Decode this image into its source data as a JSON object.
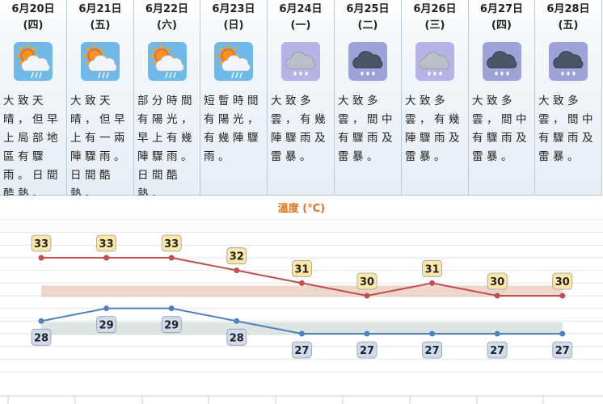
{
  "forecast": [
    {
      "date": "6月20日",
      "weekday": "(四)",
      "icon": "sun-cloud-rain-icon",
      "description": "大致天晴，但早上局部地區有驟雨。日間酷熱。"
    },
    {
      "date": "6月21日",
      "weekday": "(五)",
      "icon": "sun-cloud-rain-icon",
      "description": "大致天晴，但早上有一兩陣驟雨。日間酷熱。"
    },
    {
      "date": "6月22日",
      "weekday": "(六)",
      "icon": "sun-cloud-rain-icon",
      "description": "部分時間有陽光，早上有幾陣驟雨。日間酷熱。"
    },
    {
      "date": "6月23日",
      "weekday": "(日)",
      "icon": "sun-cloud-rain-icon",
      "description": "短暫時間有陽光，有幾陣驟雨。"
    },
    {
      "date": "6月24日",
      "weekday": "(一)",
      "icon": "cloud-rain-icon",
      "description": "大致多雲，有幾陣驟雨及雷暴。"
    },
    {
      "date": "6月25日",
      "weekday": "(二)",
      "icon": "dark-cloud-rain-icon",
      "description": "大致多雲，間中有驟雨及雷暴。"
    },
    {
      "date": "6月26日",
      "weekday": "(三)",
      "icon": "cloud-rain-icon",
      "description": "大致多雲，有幾陣驟雨及雷暴。"
    },
    {
      "date": "6月27日",
      "weekday": "(四)",
      "icon": "dark-cloud-rain-icon",
      "description": "大致多雲，間中有驟雨及雷暴。"
    },
    {
      "date": "6月28日",
      "weekday": "(五)",
      "icon": "dark-cloud-rain-icon",
      "description": "大致多雲，間中有驟雨及雷暴。"
    }
  ],
  "chart_data": {
    "type": "line",
    "title": "溫度 (°C)",
    "categories": [
      "6月20日",
      "6月21日",
      "6月22日",
      "6月23日",
      "6月24日",
      "6月25日",
      "6月26日",
      "6月27日",
      "6月28日"
    ],
    "series": [
      {
        "values": [
          33,
          33,
          33,
          32,
          31,
          30,
          31,
          30,
          30
        ],
        "color": "#c0504d"
      },
      {
        "values": [
          28,
          29,
          29,
          28,
          27,
          27,
          27,
          27,
          27
        ],
        "color": "#4f81bd"
      }
    ],
    "ylim": [
      24,
      36
    ],
    "grid": true,
    "colors": {
      "title": "#e07020",
      "max_band": "#e8c8bc",
      "min_band": "#d2dcd8",
      "max_label_bg": "#fbe7a8",
      "min_label_bg": "#cfdcef"
    }
  }
}
